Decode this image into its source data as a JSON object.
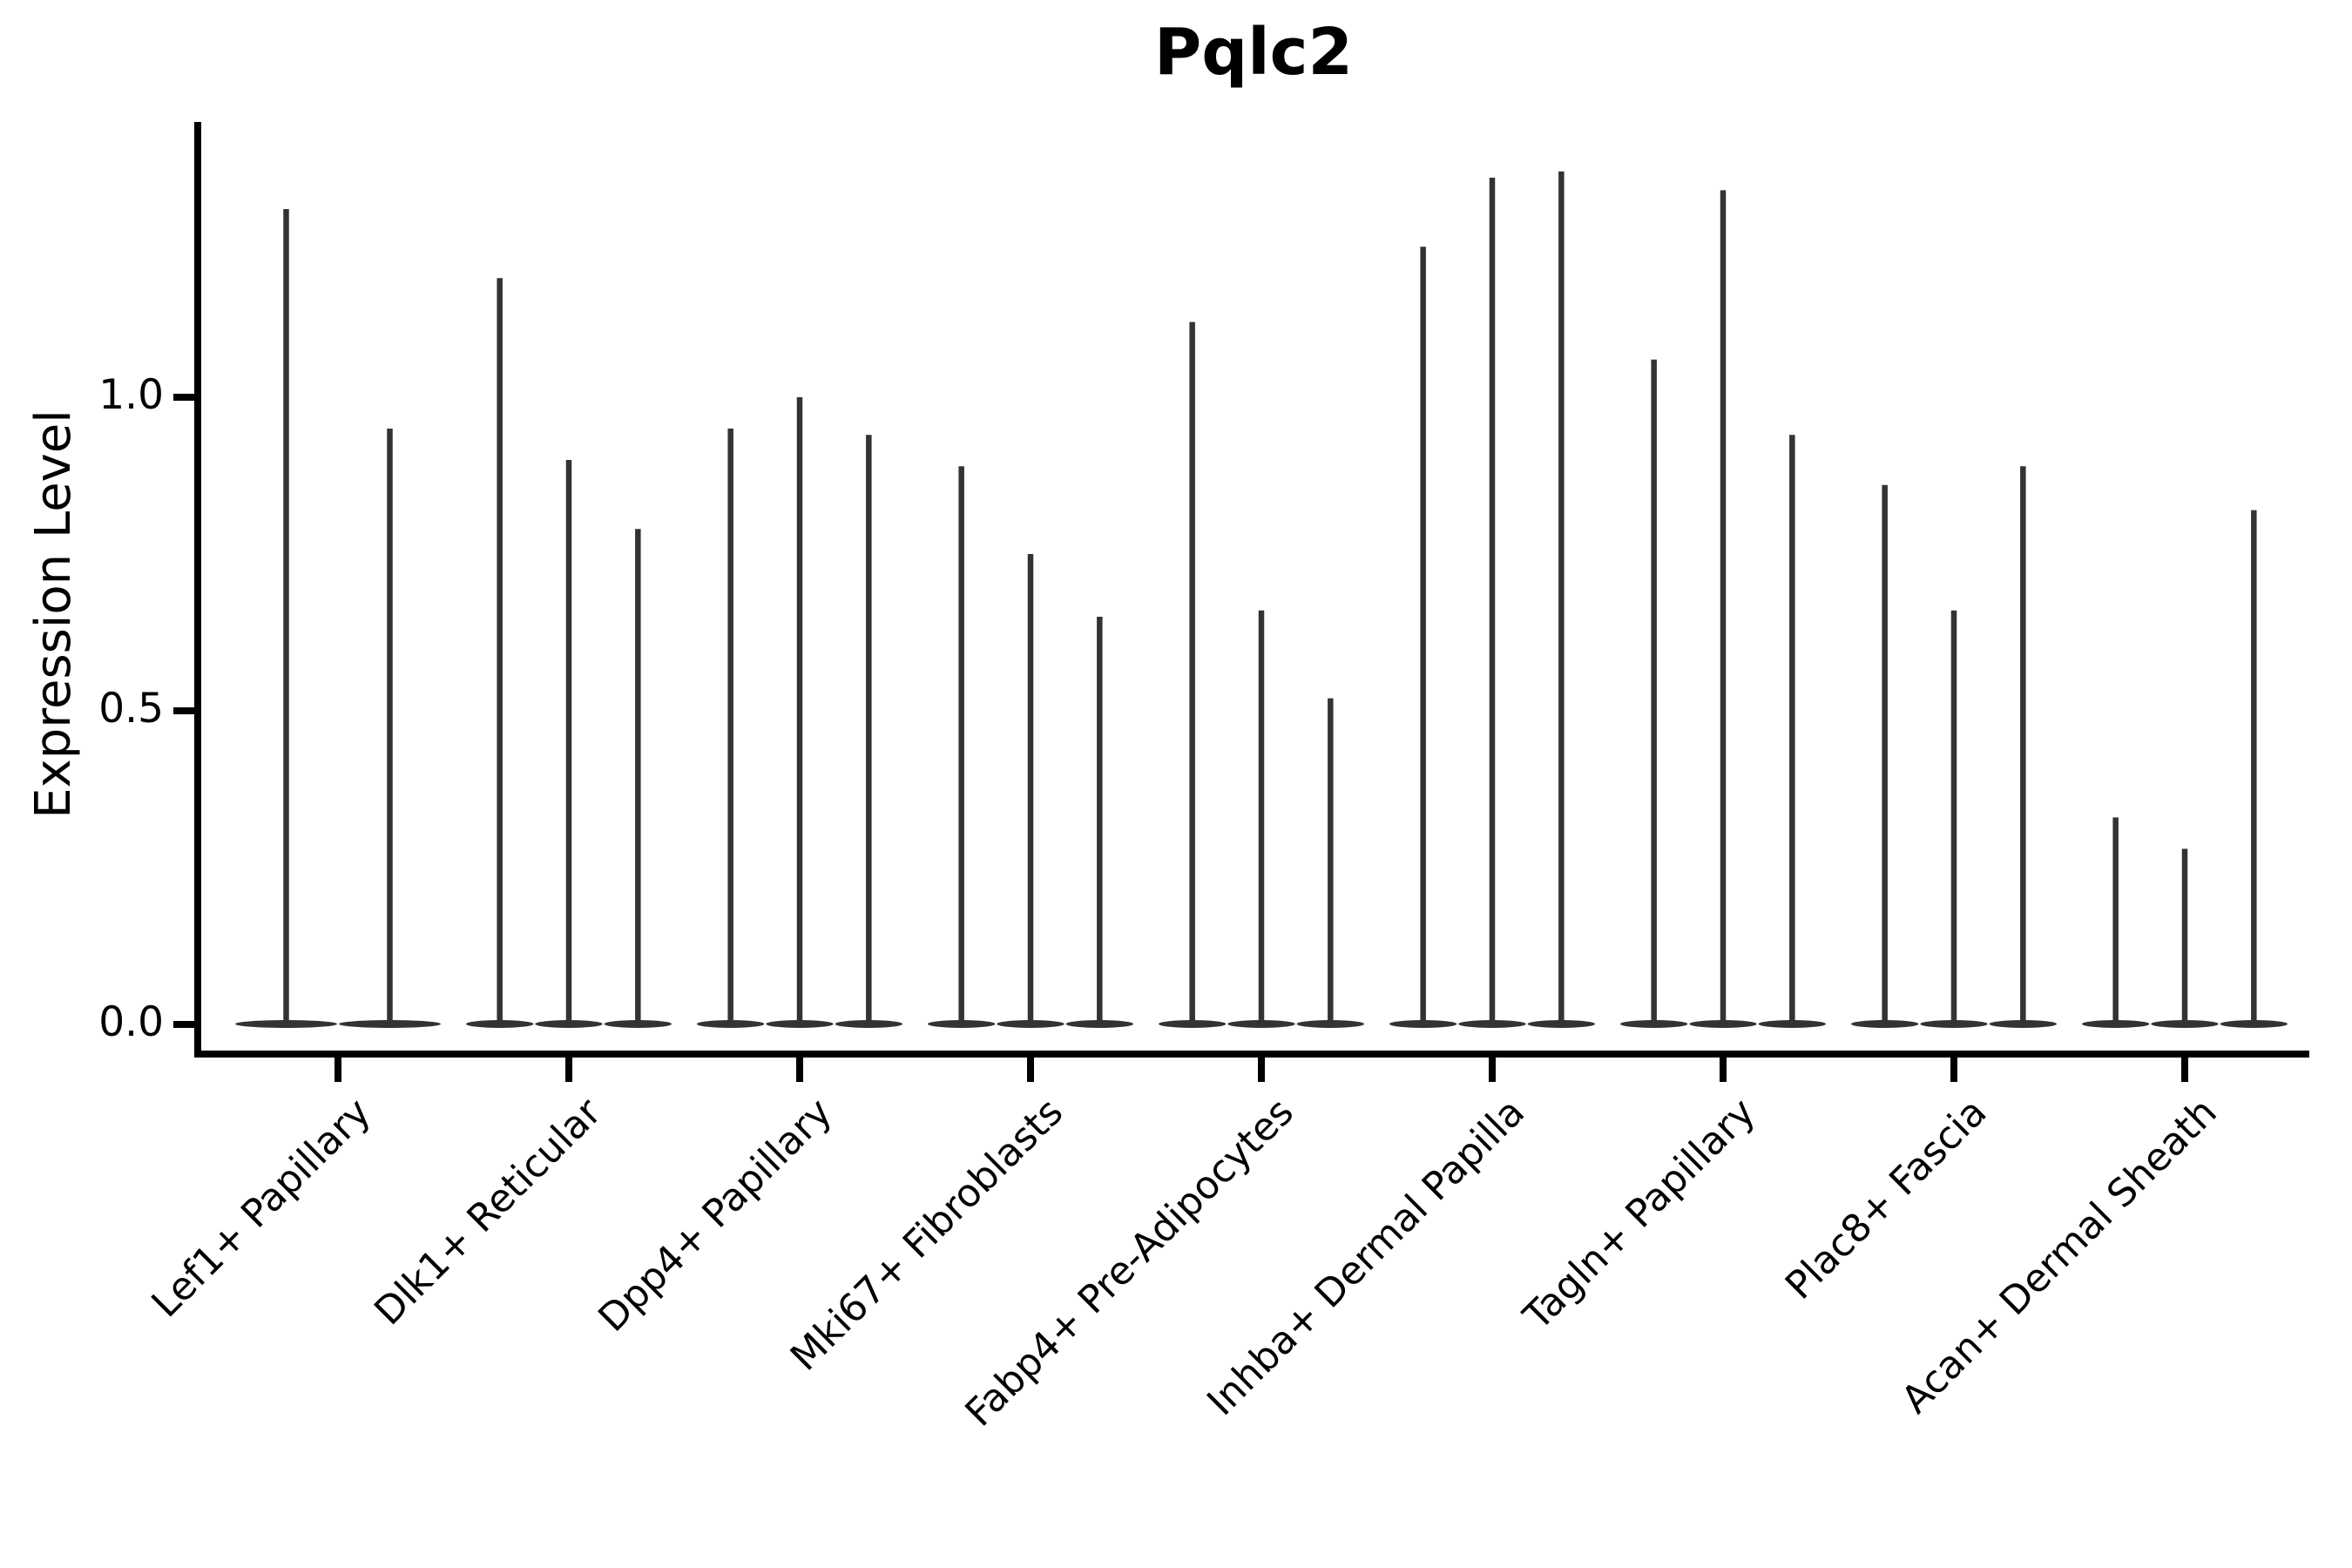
{
  "figure": {
    "title": "Pqlc2",
    "y_axis": {
      "label": "Expression Level",
      "tick_labels": [
        "0.0",
        "0.5",
        "1.0"
      ],
      "tick_values": [
        0.0,
        0.5,
        1.0
      ]
    },
    "colors": {
      "violin": "#333333",
      "axis": "#000000",
      "background": "#ffffff",
      "text": "#000000"
    }
  },
  "chart_data": {
    "type": "violin",
    "title": "Pqlc2",
    "xlabel": "",
    "ylabel": "Expression Level",
    "ylim": [
      -0.05,
      1.45
    ],
    "yticks": [
      0.0,
      0.5,
      1.0
    ],
    "grid": false,
    "legend": "none",
    "style_note": "Single-cell gene expression violin plot: every violin collapses to a thin flattened blob at 0 expression with one narrow density spike rising to the maximum expression value of that violin",
    "categories": [
      "Lef1+ Papillary",
      "Dlk1+ Reticular",
      "Dpp4+ Papillary",
      "Mki67+ Fibroblasts",
      "Fabp4+ Pre-Adipocytes",
      "Inhba+ Dermal Papilla",
      "Tagln+ Papillary",
      "Plac8+ Fascia",
      "Acan+ Dermal Sheath"
    ],
    "violins": [
      {
        "category": "Lef1+ Papillary",
        "spike_max_values": [
          1.3,
          0.95
        ]
      },
      {
        "category": "Dlk1+ Reticular",
        "spike_max_values": [
          1.19,
          0.9,
          0.79
        ]
      },
      {
        "category": "Dpp4+ Papillary",
        "spike_max_values": [
          0.95,
          1.0,
          0.94
        ]
      },
      {
        "category": "Mki67+ Fibroblasts",
        "spike_max_values": [
          0.89,
          0.75,
          0.65
        ]
      },
      {
        "category": "Fabp4+ Pre-Adipocytes",
        "spike_max_values": [
          1.12,
          0.66,
          0.52
        ]
      },
      {
        "category": "Inhba+ Dermal Papilla",
        "spike_max_values": [
          1.24,
          1.35,
          1.36
        ]
      },
      {
        "category": "Tagln+ Papillary",
        "spike_max_values": [
          1.06,
          1.33,
          0.94
        ]
      },
      {
        "category": "Plac8+ Fascia",
        "spike_max_values": [
          0.86,
          0.66,
          0.89
        ]
      },
      {
        "category": "Acan+ Dermal Sheath",
        "spike_max_values": [
          0.33,
          0.28,
          0.82
        ]
      }
    ]
  }
}
